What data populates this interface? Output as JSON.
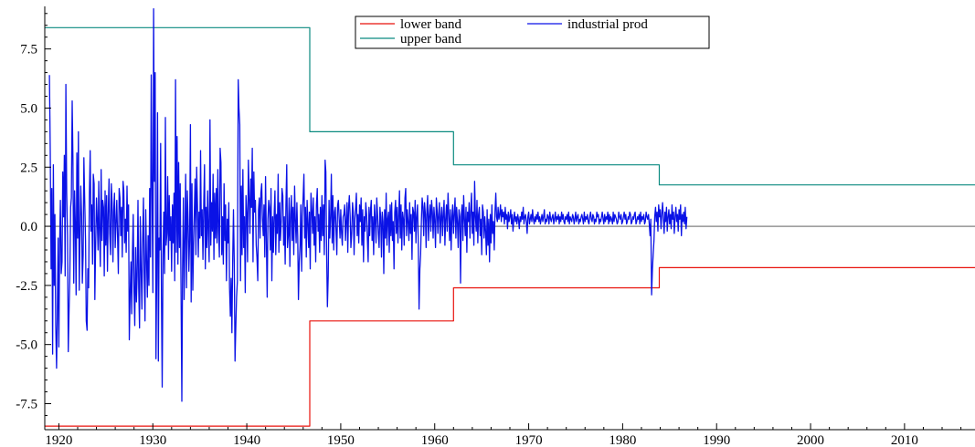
{
  "chart_data": {
    "type": "line",
    "title": "",
    "xlabel": "",
    "ylabel": "",
    "xlim": [
      1918.5,
      2017.5
    ],
    "ylim": [
      -8.6,
      9.3
    ],
    "x_ticks": [
      1920,
      1930,
      1940,
      1950,
      1960,
      1970,
      1980,
      1990,
      2000,
      2010
    ],
    "x_tick_labels": [
      "1920",
      "1930",
      "1940",
      "1950",
      "1960",
      "1970",
      "1980",
      "1990",
      "2000",
      "2010"
    ],
    "y_ticks": [
      -7.5,
      -5.0,
      -2.5,
      0.0,
      2.5,
      5.0,
      7.5
    ],
    "y_tick_labels": [
      "-7.5",
      "-5.0",
      "-2.5",
      "0.0",
      "2.5",
      "5.0",
      "7.5"
    ],
    "zero_line": true,
    "legend": {
      "placement": "top-center",
      "entries": [
        {
          "label": "lower band",
          "color": "#e8120c"
        },
        {
          "label": "industrial prod",
          "color": "#0a12e6"
        },
        {
          "label": "upper band",
          "color": "#0b8a80"
        }
      ]
    },
    "series": [
      {
        "name": "lower band",
        "color": "#e8120c",
        "style": "step",
        "x": [
          1918.5,
          1946.7,
          1946.7,
          1962.0,
          1962.0,
          1983.9,
          1983.9,
          2017.5
        ],
        "y": [
          -8.45,
          -8.45,
          -4.0,
          -4.0,
          -2.6,
          -2.6,
          -1.75,
          -1.75
        ]
      },
      {
        "name": "upper band",
        "color": "#0b8a80",
        "style": "step",
        "x": [
          1918.5,
          1946.7,
          1946.7,
          1962.0,
          1962.0,
          1983.9,
          1983.9,
          2017.5
        ],
        "y": [
          8.4,
          8.4,
          4.0,
          4.0,
          2.6,
          2.6,
          1.75,
          1.75
        ]
      },
      {
        "name": "industrial prod",
        "color": "#0a12e6",
        "style": "line",
        "frequency": "monthly",
        "x_start": 1919.0,
        "x_step": 0.0833333,
        "values": [
          6.4,
          3.2,
          -1.8,
          1.6,
          -5.4,
          2.6,
          -2.5,
          0.5,
          -4.2,
          -6.0,
          -3.8,
          -0.5,
          -5.1,
          -0.6,
          1.1,
          -2.0,
          -1.5,
          2.3,
          0.4,
          3.0,
          -2.1,
          6.0,
          1.4,
          -0.4,
          -5.3,
          -3.5,
          -2.2,
          0.8,
          1.2,
          5.3,
          2.9,
          -2.4,
          1.5,
          0.2,
          -2.9,
          3.1,
          -0.5,
          4.0,
          -2.7,
          -0.3,
          1.7,
          0.4,
          -2.4,
          -1.2,
          2.9,
          1.1,
          -0.6,
          -4.0,
          -4.4,
          -1.8,
          -2.6,
          1.3,
          3.2,
          -0.2,
          0.9,
          -1.6,
          2.2,
          1.8,
          -3.1,
          -0.7,
          1.2,
          0.3,
          -1.0,
          1.9,
          -0.4,
          -1.7,
          2.4,
          -0.6,
          1.1,
          0.8,
          -2.1,
          1.5,
          -0.8,
          1.3,
          -1.9,
          0.5,
          2.0,
          -0.3,
          -1.2,
          1.8,
          1.0,
          -1.5,
          0.6,
          1.4,
          -0.9,
          0.2,
          1.1,
          -0.5,
          -2.0,
          1.6,
          1.2,
          -0.4,
          0.8,
          -1.3,
          1.9,
          1.5,
          -0.7,
          0.3,
          -1.1,
          1.7,
          -0.2,
          0.9,
          -4.8,
          -2.9,
          -1.5,
          -3.7,
          -1.0,
          0.5,
          -2.8,
          -4.2,
          -0.9,
          -3.2,
          -2.1,
          1.1,
          -2.6,
          -4.3,
          0.4,
          -1.8,
          -3.5,
          -0.6,
          1.2,
          -2.0,
          -4.0,
          0.7,
          -1.4,
          -3.0,
          -0.4,
          -2.5,
          1.6,
          -1.3,
          6.4,
          1.6,
          -2.8,
          9.2,
          1.9,
          6.5,
          -5.6,
          -2.2,
          4.8,
          -5.7,
          -0.5,
          -1.0,
          3.5,
          -3.0,
          -6.8,
          -1.2,
          0.6,
          -2.0,
          4.6,
          -0.8,
          -0.3,
          2.1,
          -1.4,
          1.3,
          -0.6,
          0.4,
          -1.9,
          0.9,
          -0.7,
          1.4,
          -2.3,
          6.2,
          -1.1,
          3.8,
          -1.6,
          2.7,
          -0.9,
          1.8,
          -2.5,
          -7.4,
          -1.8,
          1.2,
          -3.1,
          -0.5,
          2.2,
          -2.6,
          1.5,
          0.3,
          -1.9,
          -0.6,
          4.3,
          -3.2,
          1.8,
          -2.7,
          -0.9,
          0.7,
          2.0,
          -1.2,
          2.5,
          0.9,
          -1.3,
          0.6,
          -0.5,
          3.2,
          -0.4,
          0.7,
          -1.4,
          1.0,
          2.6,
          -1.8,
          0.8,
          -0.9,
          1.5,
          -0.3,
          -1.5,
          4.5,
          -0.8,
          1.0,
          -0.2,
          2.2,
          -1.4,
          1.4,
          -0.5,
          1.6,
          -0.7,
          2.4,
          -0.2,
          -1.3,
          3.3,
          2.7,
          -1.2,
          0.4,
          -1.6,
          1.8,
          -0.6,
          0.9,
          -2.3,
          0.3,
          -0.7,
          1.0,
          -2.6,
          -3.8,
          -2.2,
          -4.5,
          -1.3,
          0.7,
          -1.6,
          -5.7,
          -4.2,
          -3.0,
          -2.3,
          6.2,
          5.0,
          4.3,
          -2.3,
          1.7,
          -1.2,
          2.4,
          -0.9,
          0.4,
          -2.8,
          1.3,
          0.5,
          -1.5,
          2.8,
          1.2,
          -0.3,
          2.0,
          0.8,
          3.3,
          -1.5,
          2.3,
          0.6,
          1.1,
          -0.8,
          -1.3,
          -2.3,
          0.7,
          1.2,
          -0.5,
          1.4,
          1.8,
          0.3,
          -0.4,
          0.9,
          -1.3,
          2.1,
          -0.6,
          -3.0,
          0.3,
          1.1,
          0.8,
          -1.0,
          1.6,
          -2.3,
          0.4,
          -1.1,
          0.6,
          1.5,
          -1.2,
          0.5,
          -0.3,
          2.2,
          -1.1,
          1.0,
          -0.6,
          0.2,
          1.6,
          1.3,
          -0.8,
          0.4,
          -1.6,
          0.9,
          2.6,
          -0.9,
          -0.4,
          1.2,
          -1.7,
          0.5,
          1.3,
          -0.6,
          0.8,
          -1.2,
          1.7,
          0.3,
          -0.7,
          1.0,
          -0.4,
          -3.1,
          -1.5,
          -0.8,
          0.9,
          -1.9,
          0.4,
          1.3,
          2.2,
          -0.5,
          0.8,
          -1.3,
          1.1,
          0.2,
          -0.9,
          0.6,
          -1.8,
          1.4,
          0.7,
          -0.3,
          1.2,
          -0.8,
          0.4,
          -1.5,
          0.9,
          1.6,
          -0.2,
          0.5,
          -1.1,
          0.8,
          -0.6,
          1.3,
          -0.4,
          0.9,
          -1.2,
          2.8,
          2.3,
          -1.3,
          -3.4,
          -2.1,
          1.1,
          -0.5,
          0.4,
          2.2,
          -0.7,
          1.3,
          -1.0,
          0.6,
          0.8,
          -0.2,
          -1.2,
          0.9,
          1.1,
          0.3,
          -0.5,
          0.7,
          -0.3,
          -0.8,
          0.4,
          0.5,
          0.9,
          -0.6,
          0.2,
          1.0,
          -1.1,
          0.8,
          1.3,
          0.4,
          -0.9,
          -0.3,
          1.0,
          0.6,
          -1.2,
          0.3,
          0.8,
          1.4,
          -0.4,
          0.5,
          -0.7,
          0.9,
          0.2,
          1.2,
          -0.8,
          0.7,
          -1.5,
          0.4,
          -0.2,
          1.0,
          0.5,
          -0.5,
          -1.5,
          0.8,
          -0.4,
          0.7,
          1.1,
          -0.6,
          0.4,
          -1.2,
          0.9,
          0.3,
          -0.7,
          1.2,
          0.5,
          -0.3,
          -0.9,
          0.8,
          0.4,
          -1.3,
          0.6,
          0.2,
          -2.0,
          0.7,
          -0.5,
          1.4,
          -0.8,
          0.3,
          0.6,
          -1.1,
          0.9,
          -0.4,
          1.0,
          -0.6,
          0.2,
          -1.8,
          0.6,
          1.1,
          -0.3,
          0.8,
          -0.7,
          0.4,
          1.5,
          -0.5,
          0.9,
          -1.0,
          0.6,
          0.3,
          -0.8,
          1.2,
          1.6,
          -0.4,
          0.7,
          0.2,
          -0.6,
          1.0,
          -0.3,
          0.5,
          -1.4,
          0.8,
          0.6,
          -0.2,
          1.1,
          -0.7,
          0.4,
          0.9,
          -0.5,
          -3.5,
          -1.8,
          -1.2,
          0.3,
          1.2,
          0.8,
          -0.4,
          1.0,
          0.5,
          -0.9,
          0.7,
          1.3,
          -0.6,
          0.4,
          0.9,
          -0.2,
          1.1,
          0.6,
          -0.5,
          0.8,
          0.3,
          -0.9,
          1.2,
          0.7,
          -0.3,
          0.5,
          1.0,
          -0.7,
          0.4,
          0.8,
          -0.4,
          0.6,
          1.1,
          -0.8,
          0.3,
          0.9,
          -0.2,
          1.4,
          0.5,
          -0.6,
          0.7,
          -1.0,
          0.4,
          0.9,
          -0.3,
          0.6,
          1.2,
          -0.5,
          0.8,
          0.2,
          -0.9,
          0.7,
          0.4,
          -2.4,
          0.5,
          0.9,
          -0.6,
          1.3,
          0.3,
          -0.4,
          0.8,
          -1.1,
          0.6,
          0.2,
          1.0,
          -0.5,
          0.7,
          1.4,
          -0.3,
          0.6,
          -0.8,
          1.9,
          0.4,
          -0.2,
          1.1,
          -0.7,
          0.5,
          0.8,
          -0.4,
          0.3,
          -1.2,
          0.9,
          0.6,
          -0.5,
          0.4,
          -0.2,
          -1.2,
          0.7,
          -0.8,
          0.3,
          -1.5,
          0.5,
          -0.7,
          0.9,
          -0.3,
          0.2,
          -1.0,
          0.6,
          1.4,
          0.4,
          0.2,
          0.8,
          0.3,
          0.5,
          0.9,
          0.2,
          0.7,
          0.4,
          0.6,
          0.1,
          0.8,
          0.3,
          0.5,
          -0.1,
          0.6,
          0.2,
          0.4,
          0.7,
          0.1,
          0.5,
          -0.2,
          0.3,
          0.6,
          0.2,
          0.4,
          0.1,
          0.5,
          0.3,
          -0.1,
          0.4,
          0.2,
          0.6,
          0.3,
          0.8,
          0.1,
          0.4,
          0.5,
          0.2,
          -0.3,
          0.4,
          0.6,
          0.1,
          0.3,
          0.5,
          0.2,
          0.7,
          0.3,
          0.1,
          0.4,
          0.2,
          0.5,
          0.3,
          0.6,
          0.2,
          0.4,
          0.1,
          0.3,
          0.5,
          0.2,
          0.4,
          0.7,
          0.1,
          0.3,
          0.2,
          0.5,
          0.4,
          0.1,
          0.6,
          0.3,
          0.2,
          0.4,
          0.5,
          0.1,
          0.3,
          0.6,
          0.2,
          0.4,
          0.3,
          0.5,
          0.1,
          0.4,
          0.2,
          0.6,
          0.3,
          0.5,
          0.2,
          0.1,
          0.4,
          0.3,
          0.5,
          0.2,
          0.6,
          0.1,
          0.4,
          0.3,
          0.2,
          0.5,
          0.4,
          0.1,
          0.3,
          0.6,
          0.2,
          0.4,
          0.5,
          0.1,
          0.3,
          0.2,
          0.4,
          0.5,
          0.3,
          0.1,
          0.6,
          0.2,
          0.4,
          0.3,
          0.5,
          0.2,
          0.1,
          0.4,
          0.6,
          0.3,
          0.2,
          0.5,
          0.4,
          0.1,
          0.3,
          0.2,
          0.6,
          0.4,
          0.5,
          0.1,
          0.3,
          0.2,
          0.4,
          0.6,
          0.3,
          0.1,
          0.5,
          0.2,
          0.4,
          0.3,
          0.6,
          0.1,
          0.5,
          0.2,
          0.4,
          0.3,
          0.1,
          0.6,
          0.2,
          0.5,
          0.4,
          0.3,
          0.1,
          0.2,
          0.6,
          0.4,
          0.3,
          0.5,
          0.1,
          0.2,
          0.4,
          0.6,
          0.3,
          0.5,
          0.1,
          0.2,
          0.4,
          0.3,
          0.6,
          0.5,
          0.1,
          0.2,
          0.4,
          0.3,
          0.5,
          0.6,
          0.1,
          0.2,
          0.4,
          0.3,
          0.5,
          0.1,
          0.6,
          0.2,
          0.4,
          0.3,
          0.5,
          0.1,
          0.2,
          0.6,
          0.4,
          0.3,
          0.5,
          0.1,
          -0.4,
          0.3,
          -2.9,
          -1.8,
          -1.2,
          -0.6,
          0.4,
          0.8,
          0.2,
          0.6,
          -0.2,
          0.9,
          0.4,
          0.7,
          -0.1,
          0.5,
          1.0,
          0.3,
          -0.3,
          0.6,
          0.2,
          0.8,
          -0.2,
          0.4,
          0.7,
          0.1,
          0.5,
          -0.1,
          0.9,
          0.3,
          0.6,
          -0.3,
          0.4,
          0.8,
          0.2,
          0.5,
          -0.2,
          0.7,
          0.3,
          0.9,
          -0.4,
          0.5,
          0.2,
          0.6,
          0.1,
          0.8,
          -0.1,
          0.4
        ]
      }
    ]
  }
}
